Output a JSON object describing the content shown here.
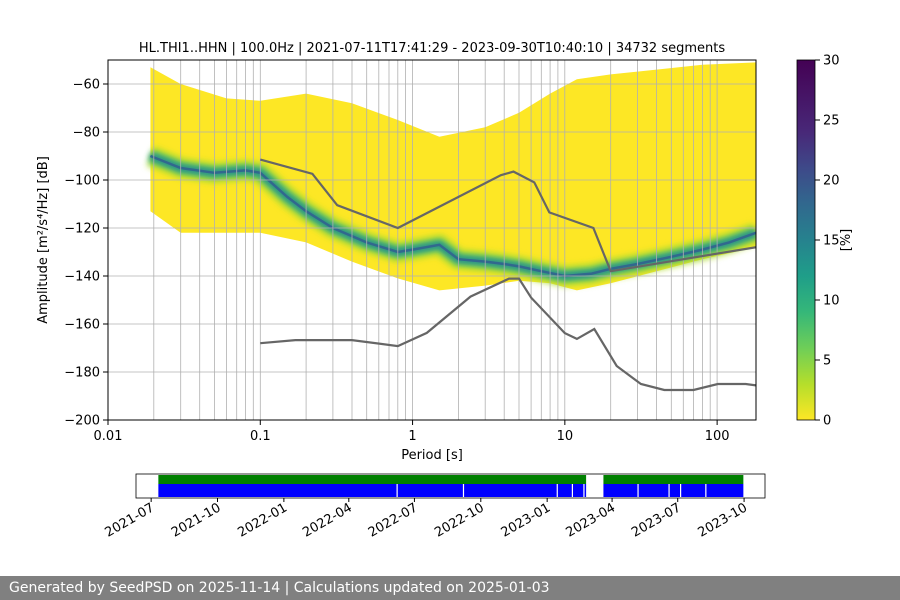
{
  "chart_data": [
    {
      "type": "heatmap",
      "title": "HL.THI1..HHN | 100.0Hz | 2021-07-11T17:41:29 - 2023-09-30T10:40:10 | 34732 segments",
      "xlabel": "Period [s]",
      "ylabel": "Amplitude [m²/s⁴/Hz] [dB]",
      "x_scale": "log",
      "xlim": [
        0.01,
        180
      ],
      "ylim": [
        -200,
        -50
      ],
      "x_ticks": [
        {
          "value": 0.01,
          "label": "0.01"
        },
        {
          "value": 0.1,
          "label": "0.1"
        },
        {
          "value": 1,
          "label": "1"
        },
        {
          "value": 10,
          "label": "10"
        },
        {
          "value": 100,
          "label": "100"
        }
      ],
      "y_ticks": [
        -60,
        -80,
        -100,
        -120,
        -140,
        -160,
        -180,
        -200
      ],
      "colorbar": {
        "label": "[%]",
        "min": 0,
        "max": 30,
        "ticks": [
          0,
          5,
          10,
          15,
          20,
          25,
          30
        ],
        "colormap": "viridis"
      },
      "grid": true,
      "period_gridlines": [
        0.02,
        0.03,
        0.04,
        0.05,
        0.06,
        0.07,
        0.08,
        0.09,
        0.1,
        0.2,
        0.3,
        0.4,
        0.5,
        0.6,
        0.7,
        0.8,
        0.9,
        1,
        2,
        3,
        4,
        5,
        6,
        7,
        8,
        9,
        10,
        20,
        30,
        40,
        50,
        60,
        70,
        80,
        90,
        100
      ],
      "data_envelope": {
        "x": [
          0.019,
          0.03,
          0.06,
          0.1,
          0.2,
          0.4,
          0.8,
          1.5,
          3,
          5,
          8,
          12,
          20,
          40,
          80,
          180
        ],
        "y_max": [
          -53,
          -60,
          -66,
          -67,
          -64,
          -68,
          -75,
          -82,
          -78,
          -72,
          -64,
          -58,
          -56,
          -54,
          -52,
          -51
        ],
        "y_min": [
          -113,
          -122,
          -122,
          -122,
          -126,
          -134,
          -141,
          -146,
          -144,
          -142,
          -143,
          -146,
          -143,
          -138,
          -133,
          -128
        ]
      },
      "mode_curve": {
        "x": [
          0.019,
          0.03,
          0.05,
          0.08,
          0.1,
          0.15,
          0.2,
          0.3,
          0.5,
          0.8,
          1,
          1.5,
          2,
          3,
          4,
          5,
          7,
          10,
          15,
          20,
          30,
          50,
          80,
          120,
          180
        ],
        "y": [
          -90,
          -95,
          -97,
          -96,
          -97,
          -107,
          -113,
          -120,
          -126,
          -130,
          -129,
          -127,
          -133,
          -134,
          -135,
          -136,
          -138,
          -140,
          -139,
          -137,
          -135,
          -132,
          -129,
          -126,
          -122
        ]
      },
      "nhnm": {
        "x": [
          0.1,
          0.22,
          0.32,
          0.8,
          3.8,
          4.6,
          6.3,
          7.9,
          15.4,
          20,
          180
        ],
        "y": [
          -91.5,
          -97.4,
          -110.5,
          -120,
          -98,
          -96.5,
          -101,
          -113.5,
          -120,
          -138,
          -128
        ]
      },
      "nlnm": {
        "x": [
          0.1,
          0.17,
          0.4,
          0.8,
          1.24,
          2.4,
          4.3,
          5,
          6,
          10,
          12,
          15.6,
          21.9,
          31.6,
          45,
          70,
          101,
          154,
          180
        ],
        "y": [
          -168,
          -166.7,
          -166.7,
          -169.2,
          -163.7,
          -148.6,
          -141.1,
          -141.1,
          -149,
          -163.8,
          -166.2,
          -162.1,
          -177.5,
          -185,
          -187.5,
          -187.5,
          -185,
          -185,
          -185.6
        ]
      }
    },
    {
      "type": "timeline",
      "x_ticks": [
        "2021-07",
        "2021-10",
        "2022-01",
        "2022-04",
        "2022-07",
        "2022-10",
        "2023-01",
        "2023-04",
        "2023-07",
        "2023-10"
      ],
      "range": [
        "2021-06-10",
        "2023-10-30"
      ],
      "data_spans": [
        {
          "start": "2021-07-11",
          "end": "2023-02-24"
        },
        {
          "start": "2023-03-20",
          "end": "2023-09-30"
        }
      ],
      "used_spans": [
        {
          "start": "2021-07-11",
          "end": "2023-02-24"
        },
        {
          "start": "2023-03-20",
          "end": "2023-09-30"
        }
      ],
      "gaps": [
        "2022-06-07",
        "2022-09-07",
        "2023-01-15",
        "2023-02-05",
        "2023-02-21",
        "2023-05-07",
        "2023-06-19",
        "2023-07-05",
        "2023-08-09"
      ],
      "colors": {
        "data": "#008000",
        "used": "#0000ff"
      }
    }
  ],
  "colors": {
    "curve": "#666666",
    "grid": "#b0b0b0",
    "footer_bg": "#808080",
    "footer_text": "#ffffff"
  },
  "footer": {
    "text": "Generated by SeedPSD on 2025-11-14 | Calculations updated on 2025-01-03"
  }
}
